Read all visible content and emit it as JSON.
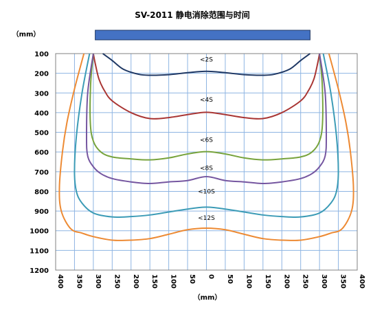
{
  "chart_data": {
    "type": "line",
    "title": "SV-2011 静电消除范围与时间",
    "ylabel": "（mm）",
    "xlabel": "（mm）",
    "xlim": [
      -400,
      400
    ],
    "ylim": [
      100,
      1200
    ],
    "y_inverted": true,
    "grid": true,
    "xticks": [
      -400,
      -350,
      -300,
      -250,
      -200,
      -150,
      -100,
      -50,
      0,
      50,
      100,
      150,
      200,
      250,
      300,
      350,
      400
    ],
    "xtick_labels": [
      "400",
      "350",
      "300",
      "250",
      "200",
      "150",
      "100",
      "50",
      "0",
      "50",
      "100",
      "150",
      "200",
      "250",
      "300",
      "350",
      "400"
    ],
    "yticks": [
      100,
      200,
      300,
      400,
      500,
      600,
      700,
      800,
      900,
      1000,
      1100,
      1200
    ],
    "ytick_labels": [
      "100",
      "200",
      "300",
      "400",
      "500",
      "600",
      "700",
      "800",
      "900",
      "1000",
      "1100",
      "1200"
    ],
    "device_bar": {
      "x_range": [
        -295,
        275
      ],
      "color": "#4472C4"
    },
    "series": [
      {
        "name": "<2S",
        "color": "#1F3864",
        "label_at": [
          0,
          140
        ],
        "x": [
          -275,
          -250,
          -220,
          -180,
          -150,
          -100,
          -50,
          0,
          50,
          100,
          150,
          180,
          220,
          250,
          275
        ],
        "y": [
          100,
          135,
          180,
          205,
          210,
          207,
          197,
          190,
          197,
          207,
          210,
          205,
          180,
          135,
          100
        ]
      },
      {
        "name": "<4S",
        "color": "#A93533",
        "label_at": [
          0,
          345
        ],
        "x": [
          -300,
          -295,
          -285,
          -270,
          -250,
          -200,
          -150,
          -100,
          -50,
          0,
          50,
          100,
          150,
          200,
          250,
          270,
          285,
          295,
          300
        ],
        "y": [
          100,
          150,
          230,
          290,
          340,
          400,
          430,
          425,
          410,
          398,
          410,
          425,
          430,
          400,
          340,
          290,
          230,
          150,
          100
        ]
      },
      {
        "name": "<6S",
        "color": "#77A33C",
        "label_at": [
          0,
          548
        ],
        "x": [
          -300,
          -307,
          -308,
          -300,
          -280,
          -250,
          -200,
          -150,
          -100,
          -50,
          0,
          50,
          100,
          150,
          200,
          250,
          280,
          300,
          308,
          307,
          300
        ],
        "y": [
          100,
          250,
          450,
          545,
          600,
          625,
          635,
          640,
          630,
          610,
          598,
          610,
          630,
          640,
          635,
          625,
          600,
          545,
          450,
          250,
          100
        ]
      },
      {
        "name": "<8S",
        "color": "#7556A0",
        "label_at": [
          0,
          692
        ],
        "x": [
          -300,
          -315,
          -318,
          -315,
          -300,
          -280,
          -250,
          -200,
          -150,
          -100,
          -50,
          0,
          50,
          100,
          150,
          200,
          250,
          280,
          300,
          315,
          318,
          315,
          300
        ],
        "y": [
          100,
          300,
          520,
          620,
          675,
          710,
          735,
          752,
          760,
          752,
          745,
          725,
          745,
          752,
          760,
          752,
          735,
          710,
          675,
          620,
          520,
          300,
          100
        ]
      },
      {
        "name": "<10S",
        "color": "#3B9BB6",
        "label_at": [
          0,
          810
        ],
        "x": [
          -310,
          -330,
          -345,
          -350,
          -345,
          -330,
          -300,
          -250,
          -200,
          -150,
          -100,
          -50,
          0,
          50,
          100,
          150,
          200,
          250,
          300,
          330,
          345,
          350,
          345,
          330,
          310
        ],
        "y": [
          100,
          300,
          520,
          700,
          800,
          860,
          910,
          930,
          928,
          920,
          905,
          890,
          880,
          890,
          905,
          920,
          928,
          930,
          910,
          860,
          800,
          700,
          520,
          300,
          100
        ]
      },
      {
        "name": "<12S",
        "color": "#ED8A33",
        "label_at": [
          0,
          945
        ],
        "x": [
          -325,
          -350,
          -370,
          -382,
          -390,
          -385,
          -360,
          -330,
          -300,
          -250,
          -200,
          -150,
          -100,
          -50,
          0,
          50,
          100,
          150,
          200,
          250,
          300,
          330,
          360,
          385,
          390,
          382,
          370,
          350,
          325
        ],
        "y": [
          100,
          280,
          450,
          600,
          780,
          900,
          990,
          1012,
          1030,
          1048,
          1048,
          1040,
          1018,
          995,
          987,
          995,
          1018,
          1040,
          1048,
          1048,
          1030,
          1012,
          990,
          900,
          780,
          600,
          450,
          280,
          100
        ]
      }
    ]
  }
}
